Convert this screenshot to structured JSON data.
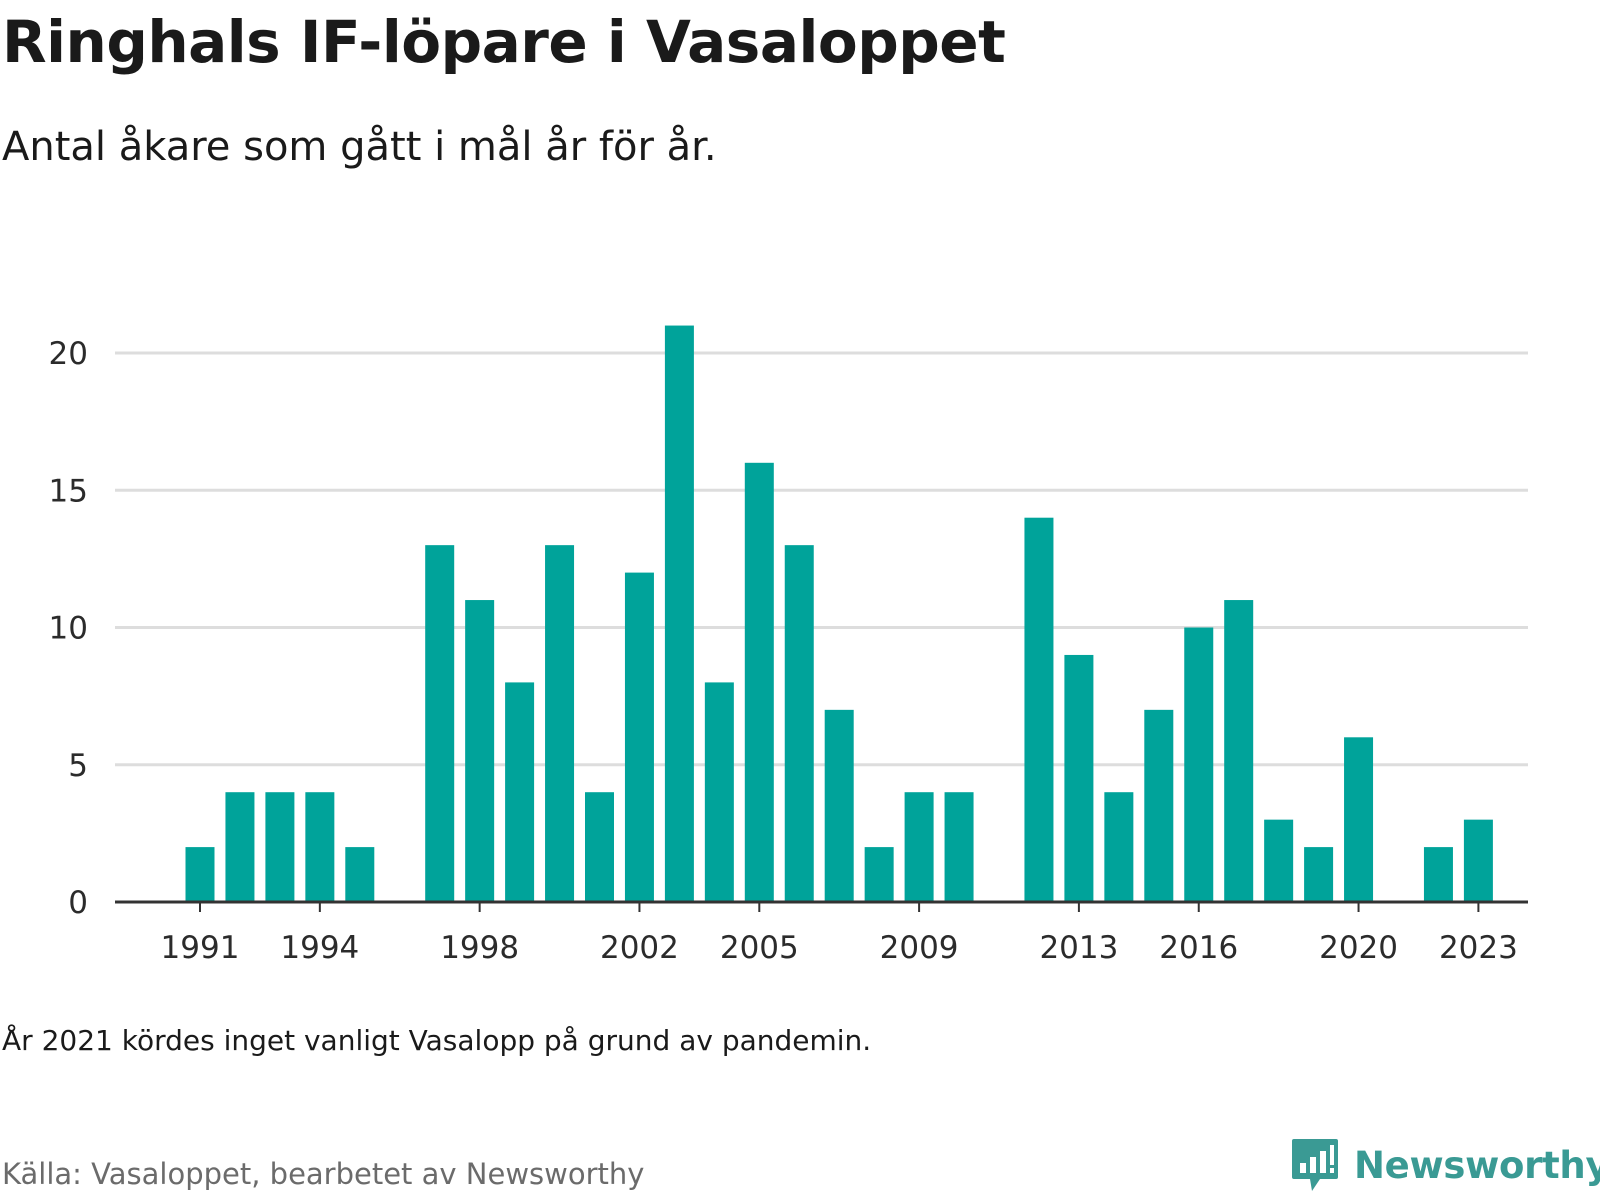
{
  "title": "Ringhals IF-löpare i Vasaloppet",
  "subtitle": "Antal åkare som gått i mål år för år.",
  "note": "År 2021 kördes inget vanligt Vasalopp på grund av pandemin.",
  "source": "Källa: Vasaloppet, bearbetet av Newsworthy",
  "brand": {
    "name": "Newsworthy",
    "color": "#3a9a94",
    "icon": "newsworthy-bars-icon"
  },
  "colors": {
    "bar": "#00a39a",
    "grid": "#dddddd",
    "axis": "#333333"
  },
  "chart_data": {
    "type": "bar",
    "categories": [
      1991,
      1992,
      1993,
      1994,
      1995,
      1996,
      1997,
      1998,
      1999,
      2000,
      2001,
      2002,
      2003,
      2004,
      2005,
      2006,
      2007,
      2008,
      2009,
      2010,
      2011,
      2012,
      2013,
      2014,
      2015,
      2016,
      2017,
      2018,
      2019,
      2020,
      2021,
      2022,
      2023
    ],
    "values": [
      2,
      4,
      4,
      4,
      2,
      null,
      13,
      11,
      8,
      13,
      4,
      12,
      21,
      8,
      16,
      13,
      7,
      2,
      4,
      4,
      null,
      14,
      9,
      4,
      7,
      10,
      11,
      3,
      2,
      6,
      null,
      2,
      3
    ],
    "x_tick_labels": [
      "1991",
      "1994",
      "1998",
      "2002",
      "2005",
      "2009",
      "2013",
      "2016",
      "2020",
      "2023"
    ],
    "y_ticks": [
      0,
      5,
      10,
      15,
      20
    ],
    "ylim": [
      0,
      22
    ],
    "xlabel": "",
    "ylabel": "",
    "grid": true,
    "legend": "none"
  }
}
